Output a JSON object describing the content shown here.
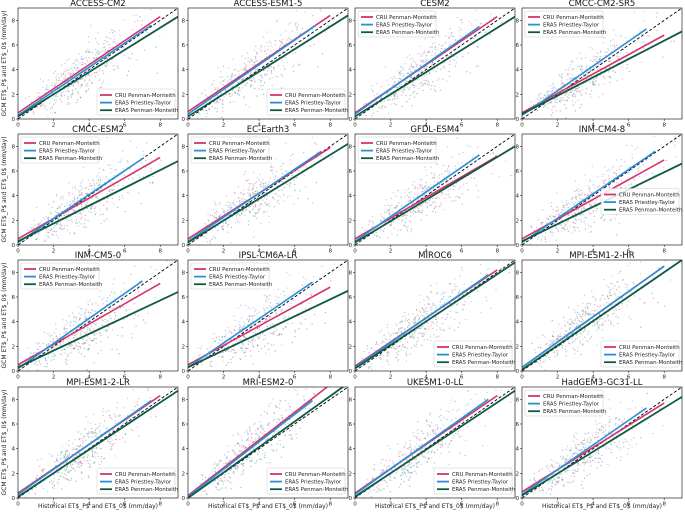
{
  "figure": {
    "xlabel": "Historical ET$_P$ and ET$_0$ (mm/day)",
    "ylabel": "GCM ET$_P$ and ET$_0$ (mm/day)",
    "colors": {
      "cru": "#d6336c",
      "era5_pt": "#2b8fd6",
      "era5_pm": "#0f5a46",
      "identity": "#000000"
    }
  },
  "chart_data": [
    {
      "type": "scatter",
      "title": "ACCESS-CM2",
      "xlim": [
        0,
        9
      ],
      "ylim": [
        0,
        9
      ],
      "xticks": [
        0,
        2,
        4,
        6,
        8
      ],
      "yticks": [
        0,
        2,
        4,
        6,
        8
      ],
      "legend_position": "lower-right",
      "series": [
        {
          "name": "CRU Penman-Monteith",
          "x": [
            0,
            8
          ],
          "y": [
            0.5,
            8.3
          ]
        },
        {
          "name": "ERA5 Priestley-Taylor",
          "x": [
            0,
            7.5
          ],
          "y": [
            0.3,
            7.6
          ]
        },
        {
          "name": "ERA5 Penman-Monteith",
          "x": [
            0,
            9
          ],
          "y": [
            0.2,
            8.3
          ]
        }
      ]
    },
    {
      "type": "scatter",
      "title": "ACCESS-ESM1-5",
      "xlim": [
        0,
        9
      ],
      "ylim": [
        0,
        9
      ],
      "xticks": [
        0,
        2,
        4,
        6,
        8
      ],
      "yticks": [
        0,
        2,
        4,
        6,
        8
      ],
      "legend_position": "lower-right",
      "series": [
        {
          "name": "CRU Penman-Monteith",
          "x": [
            0,
            8
          ],
          "y": [
            0.6,
            8.4
          ]
        },
        {
          "name": "ERA5 Priestley-Taylor",
          "x": [
            0,
            7.2
          ],
          "y": [
            0.4,
            7.6
          ]
        },
        {
          "name": "ERA5 Penman-Monteith",
          "x": [
            0,
            9
          ],
          "y": [
            0.2,
            8.4
          ]
        }
      ]
    },
    {
      "type": "scatter",
      "title": "CESM2",
      "xlim": [
        0,
        9
      ],
      "ylim": [
        0,
        9
      ],
      "xticks": [
        0,
        2,
        4,
        6,
        8
      ],
      "yticks": [
        0,
        2,
        4,
        6,
        8
      ],
      "legend_position": "top-left",
      "series": [
        {
          "name": "CRU Penman-Monteith",
          "x": [
            0,
            8
          ],
          "y": [
            0.5,
            8.3
          ]
        },
        {
          "name": "ERA5 Priestley-Taylor",
          "x": [
            0,
            7
          ],
          "y": [
            0.4,
            7.5
          ]
        },
        {
          "name": "ERA5 Penman-Monteith",
          "x": [
            0,
            9
          ],
          "y": [
            0.2,
            8.3
          ]
        }
      ]
    },
    {
      "type": "scatter",
      "title": "CMCC-CM2-SR5",
      "xlim": [
        0,
        9
      ],
      "ylim": [
        0,
        9
      ],
      "xticks": [
        0,
        2,
        4,
        6,
        8
      ],
      "yticks": [
        0,
        2,
        4,
        6,
        8
      ],
      "legend_position": "top-left",
      "series": [
        {
          "name": "CRU Penman-Monteith",
          "x": [
            0,
            8
          ],
          "y": [
            0.5,
            6.8
          ]
        },
        {
          "name": "ERA5 Priestley-Taylor",
          "x": [
            0,
            7
          ],
          "y": [
            0.3,
            7.3
          ]
        },
        {
          "name": "ERA5 Penman-Monteith",
          "x": [
            0,
            9
          ],
          "y": [
            0.4,
            7.1
          ]
        }
      ]
    },
    {
      "type": "scatter",
      "title": "CMCC-ESM2",
      "xlim": [
        0,
        9
      ],
      "ylim": [
        0,
        9
      ],
      "xticks": [
        0,
        2,
        4,
        6,
        8
      ],
      "yticks": [
        0,
        2,
        4,
        6,
        8
      ],
      "legend_position": "top-left",
      "series": [
        {
          "name": "CRU Penman-Monteith",
          "x": [
            0,
            8
          ],
          "y": [
            0.5,
            7.1
          ]
        },
        {
          "name": "ERA5 Priestley-Taylor",
          "x": [
            0,
            7
          ],
          "y": [
            0.2,
            7.0
          ]
        },
        {
          "name": "ERA5 Penman-Monteith",
          "x": [
            0,
            9
          ],
          "y": [
            0.3,
            6.8
          ]
        }
      ]
    },
    {
      "type": "scatter",
      "title": "EC-Earth3",
      "xlim": [
        0,
        9
      ],
      "ylim": [
        0,
        9
      ],
      "xticks": [
        0,
        2,
        4,
        6,
        8
      ],
      "yticks": [
        0,
        2,
        4,
        6,
        8
      ],
      "legend_position": "top-left",
      "series": [
        {
          "name": "CRU Penman-Monteith",
          "x": [
            0,
            8
          ],
          "y": [
            0.5,
            7.9
          ]
        },
        {
          "name": "ERA5 Priestley-Taylor",
          "x": [
            0,
            7.5
          ],
          "y": [
            0.3,
            7.6
          ]
        },
        {
          "name": "ERA5 Penman-Monteith",
          "x": [
            0,
            9
          ],
          "y": [
            0.2,
            8.2
          ]
        }
      ]
    },
    {
      "type": "scatter",
      "title": "GFDL-ESM4",
      "xlim": [
        0,
        9
      ],
      "ylim": [
        0,
        9
      ],
      "xticks": [
        0,
        2,
        4,
        6,
        8
      ],
      "yticks": [
        0,
        2,
        4,
        6,
        8
      ],
      "legend_position": "top-left",
      "series": [
        {
          "name": "CRU Penman-Monteith",
          "x": [
            0,
            8
          ],
          "y": [
            0.5,
            7.2
          ]
        },
        {
          "name": "ERA5 Priestley-Taylor",
          "x": [
            0,
            7
          ],
          "y": [
            0.3,
            7.3
          ]
        },
        {
          "name": "ERA5 Penman-Monteith",
          "x": [
            0,
            9
          ],
          "y": [
            0.2,
            8.0
          ]
        }
      ]
    },
    {
      "type": "scatter",
      "title": "INM-CM4-8",
      "xlim": [
        0,
        9
      ],
      "ylim": [
        0,
        9
      ],
      "xticks": [
        0,
        2,
        4,
        6,
        8
      ],
      "yticks": [
        0,
        2,
        4,
        6,
        8
      ],
      "legend_position": "right",
      "series": [
        {
          "name": "CRU Penman-Monteith",
          "x": [
            0,
            8
          ],
          "y": [
            0.5,
            6.9
          ]
        },
        {
          "name": "ERA5 Priestley-Taylor",
          "x": [
            0,
            7.5
          ],
          "y": [
            0.2,
            7.6
          ]
        },
        {
          "name": "ERA5 Penman-Monteith",
          "x": [
            0,
            9
          ],
          "y": [
            0.3,
            6.6
          ]
        }
      ]
    },
    {
      "type": "scatter",
      "title": "INM-CM5-0",
      "xlim": [
        0,
        9
      ],
      "ylim": [
        0,
        9
      ],
      "xticks": [
        0,
        2,
        4,
        6,
        8
      ],
      "yticks": [
        0,
        2,
        4,
        6,
        8
      ],
      "legend_position": "top-left",
      "series": [
        {
          "name": "CRU Penman-Monteith",
          "x": [
            0,
            8
          ],
          "y": [
            0.5,
            7.1
          ]
        },
        {
          "name": "ERA5 Priestley-Taylor",
          "x": [
            0,
            7
          ],
          "y": [
            0.2,
            7.3
          ]
        },
        {
          "name": "ERA5 Penman-Monteith",
          "x": [
            0,
            9
          ],
          "y": [
            0.3,
            6.4
          ]
        }
      ]
    },
    {
      "type": "scatter",
      "title": "IPSL-CM6A-LR",
      "xlim": [
        0,
        9
      ],
      "ylim": [
        0,
        9
      ],
      "xticks": [
        0,
        2,
        4,
        6,
        8
      ],
      "yticks": [
        0,
        2,
        4,
        6,
        8
      ],
      "legend_position": "top-left",
      "series": [
        {
          "name": "CRU Penman-Monteith",
          "x": [
            0,
            8
          ],
          "y": [
            0.5,
            6.8
          ]
        },
        {
          "name": "ERA5 Priestley-Taylor",
          "x": [
            0,
            7
          ],
          "y": [
            0.3,
            7.2
          ]
        },
        {
          "name": "ERA5 Penman-Monteith",
          "x": [
            0,
            9
          ],
          "y": [
            0.3,
            6.5
          ]
        }
      ]
    },
    {
      "type": "scatter",
      "title": "MIROC6",
      "xlim": [
        0,
        9
      ],
      "ylim": [
        0,
        9
      ],
      "xticks": [
        0,
        2,
        4,
        6,
        8
      ],
      "yticks": [
        0,
        2,
        4,
        6,
        8
      ],
      "legend_position": "lower-right",
      "series": [
        {
          "name": "CRU Penman-Monteith",
          "x": [
            0,
            8
          ],
          "y": [
            0.4,
            8.2
          ]
        },
        {
          "name": "ERA5 Priestley-Taylor",
          "x": [
            0,
            7.5
          ],
          "y": [
            0.3,
            7.8
          ]
        },
        {
          "name": "ERA5 Penman-Monteith",
          "x": [
            0,
            9
          ],
          "y": [
            0.2,
            8.8
          ]
        }
      ]
    },
    {
      "type": "scatter",
      "title": "MPI-ESM1-2-HR",
      "xlim": [
        0,
        9
      ],
      "ylim": [
        0,
        9
      ],
      "xticks": [
        0,
        2,
        4,
        6,
        8
      ],
      "yticks": [
        0,
        2,
        4,
        6,
        8
      ],
      "legend_position": "lower-right",
      "series": [
        {
          "name": "CRU Penman-Monteith",
          "x": [
            0,
            8
          ],
          "y": [
            0.3,
            8.5
          ]
        },
        {
          "name": "ERA5 Priestley-Taylor",
          "x": [
            0,
            8
          ],
          "y": [
            0.3,
            8.5
          ]
        },
        {
          "name": "ERA5 Penman-Monteith",
          "x": [
            0,
            9
          ],
          "y": [
            0.1,
            9.0
          ]
        }
      ]
    },
    {
      "type": "scatter",
      "title": "MPI-ESM1-2-LR",
      "xlim": [
        0,
        9
      ],
      "ylim": [
        0,
        9
      ],
      "xticks": [
        0,
        2,
        4,
        6,
        8
      ],
      "yticks": [
        0,
        2,
        4,
        6,
        8
      ],
      "legend_position": "lower-right",
      "series": [
        {
          "name": "CRU Penman-Monteith",
          "x": [
            0,
            8
          ],
          "y": [
            0.4,
            8.3
          ]
        },
        {
          "name": "ERA5 Priestley-Taylor",
          "x": [
            0,
            7.5
          ],
          "y": [
            0.3,
            7.9
          ]
        },
        {
          "name": "ERA5 Penman-Monteith",
          "x": [
            0,
            9
          ],
          "y": [
            0.1,
            8.7
          ]
        }
      ]
    },
    {
      "type": "scatter",
      "title": "MRI-ESM2-0",
      "xlim": [
        0,
        9
      ],
      "ylim": [
        0,
        9
      ],
      "xticks": [
        0,
        2,
        4,
        6,
        8
      ],
      "yticks": [
        0,
        2,
        4,
        6,
        8
      ],
      "legend_position": "lower-right",
      "series": [
        {
          "name": "CRU Penman-Monteith",
          "x": [
            0,
            8
          ],
          "y": [
            0.2,
            9.2
          ]
        },
        {
          "name": "ERA5 Priestley-Taylor",
          "x": [
            0,
            7
          ],
          "y": [
            0.1,
            7.9
          ]
        },
        {
          "name": "ERA5 Penman-Monteith",
          "x": [
            0,
            9
          ],
          "y": [
            0.0,
            9.3
          ]
        }
      ]
    },
    {
      "type": "scatter",
      "title": "UKESM1-0-LL",
      "xlim": [
        0,
        9
      ],
      "ylim": [
        0,
        9
      ],
      "xticks": [
        0,
        2,
        4,
        6,
        8
      ],
      "yticks": [
        0,
        2,
        4,
        6,
        8
      ],
      "legend_position": "lower-right",
      "series": [
        {
          "name": "CRU Penman-Monteith",
          "x": [
            0,
            8
          ],
          "y": [
            0.4,
            8.3
          ]
        },
        {
          "name": "ERA5 Priestley-Taylor",
          "x": [
            0,
            7.5
          ],
          "y": [
            0.3,
            8.0
          ]
        },
        {
          "name": "ERA5 Penman-Monteith",
          "x": [
            0,
            9
          ],
          "y": [
            0.1,
            8.7
          ]
        }
      ]
    },
    {
      "type": "scatter",
      "title": "HadGEM3-GC31-LL",
      "xlim": [
        0,
        9
      ],
      "ylim": [
        0,
        9
      ],
      "xticks": [
        0,
        2,
        4,
        6,
        8
      ],
      "yticks": [
        0,
        2,
        4,
        6,
        8
      ],
      "legend_position": "top-left",
      "series": [
        {
          "name": "CRU Penman-Monteith",
          "x": [
            0,
            8
          ],
          "y": [
            0.5,
            7.7
          ]
        },
        {
          "name": "ERA5 Priestley-Taylor",
          "x": [
            0,
            7
          ],
          "y": [
            0.3,
            7.3
          ]
        },
        {
          "name": "ERA5 Penman-Monteith",
          "x": [
            0,
            9
          ],
          "y": [
            0.2,
            8.2
          ]
        }
      ]
    }
  ]
}
